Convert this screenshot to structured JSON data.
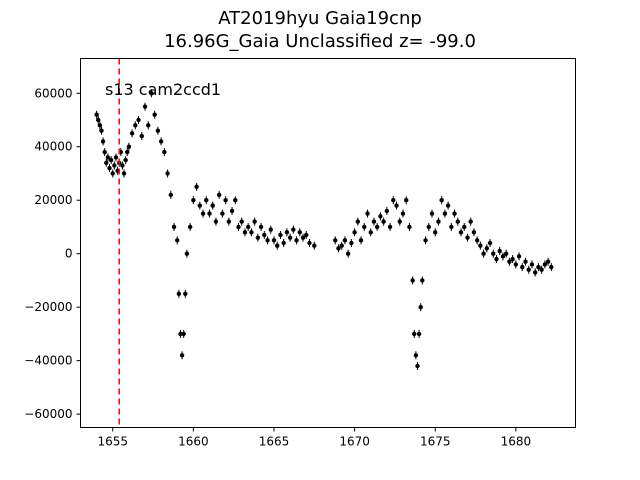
{
  "chart_data": {
    "type": "scatter",
    "title_line1": "AT2019hyu  Gaia19cnp",
    "title_line2": "16.96G_Gaia Unclassified z= -99.0",
    "annotation": "s13 cam2ccd1",
    "xlabel": "",
    "ylabel": "",
    "xlim": [
      1653.0,
      1683.7
    ],
    "ylim": [
      -65000,
      73000
    ],
    "xticks": [
      1655,
      1660,
      1665,
      1670,
      1675,
      1680
    ],
    "yticks": [
      -60000,
      -40000,
      -20000,
      0,
      20000,
      40000,
      60000
    ],
    "xtick_labels": [
      "1655",
      "1660",
      "1665",
      "1670",
      "1675",
      "1680"
    ],
    "ytick_labels": [
      "−60000",
      "−40000",
      "−20000",
      "0",
      "20000",
      "40000",
      "60000"
    ],
    "grid": false,
    "marker_color": "#000000",
    "vline": {
      "x": 1655.4,
      "color": "#e41a1c",
      "style": "dashed"
    },
    "series": [
      {
        "values": [
          [
            1654.0,
            52000
          ],
          [
            1654.1,
            50000
          ],
          [
            1654.2,
            48000
          ],
          [
            1654.3,
            46000
          ],
          [
            1654.4,
            42000
          ],
          [
            1654.5,
            38000
          ],
          [
            1654.6,
            34000
          ],
          [
            1654.7,
            36000
          ],
          [
            1654.8,
            32000
          ],
          [
            1654.9,
            35000
          ],
          [
            1655.0,
            30000
          ],
          [
            1655.1,
            33000
          ],
          [
            1655.2,
            36000
          ],
          [
            1655.3,
            31000
          ],
          [
            1655.4,
            34000
          ],
          [
            1655.5,
            38000
          ],
          [
            1655.6,
            33000
          ],
          [
            1655.7,
            30000
          ],
          [
            1655.8,
            35000
          ],
          [
            1655.9,
            38000
          ],
          [
            1656.0,
            40000
          ],
          [
            1656.2,
            45000
          ],
          [
            1656.4,
            48000
          ],
          [
            1656.6,
            50000
          ],
          [
            1656.8,
            44000
          ],
          [
            1657.0,
            55000
          ],
          [
            1657.2,
            48000
          ],
          [
            1657.4,
            60000
          ],
          [
            1657.6,
            52000
          ],
          [
            1657.8,
            46000
          ],
          [
            1658.0,
            42000
          ],
          [
            1658.2,
            38000
          ],
          [
            1658.4,
            30000
          ],
          [
            1658.6,
            22000
          ],
          [
            1658.8,
            10000
          ],
          [
            1659.0,
            5000
          ],
          [
            1659.1,
            -15000
          ],
          [
            1659.2,
            -30000
          ],
          [
            1659.3,
            -38000
          ],
          [
            1659.4,
            -30000
          ],
          [
            1659.5,
            -15000
          ],
          [
            1659.6,
            0
          ],
          [
            1659.8,
            10000
          ],
          [
            1660.0,
            20000
          ],
          [
            1660.2,
            25000
          ],
          [
            1660.4,
            18000
          ],
          [
            1660.6,
            15000
          ],
          [
            1660.8,
            20000
          ],
          [
            1661.0,
            15000
          ],
          [
            1661.2,
            18000
          ],
          [
            1661.4,
            12000
          ],
          [
            1661.6,
            22000
          ],
          [
            1661.8,
            15000
          ],
          [
            1662.0,
            20000
          ],
          [
            1662.2,
            12000
          ],
          [
            1662.4,
            16000
          ],
          [
            1662.6,
            20000
          ],
          [
            1662.8,
            10000
          ],
          [
            1663.0,
            12000
          ],
          [
            1663.2,
            8000
          ],
          [
            1663.4,
            10000
          ],
          [
            1663.6,
            8000
          ],
          [
            1663.8,
            12000
          ],
          [
            1664.0,
            6000
          ],
          [
            1664.2,
            10000
          ],
          [
            1664.4,
            7000
          ],
          [
            1664.6,
            5000
          ],
          [
            1664.8,
            9000
          ],
          [
            1665.0,
            5000
          ],
          [
            1665.2,
            3000
          ],
          [
            1665.4,
            7000
          ],
          [
            1665.6,
            4000
          ],
          [
            1665.8,
            8000
          ],
          [
            1666.0,
            6000
          ],
          [
            1666.2,
            9000
          ],
          [
            1666.4,
            5000
          ],
          [
            1666.6,
            8000
          ],
          [
            1666.8,
            6000
          ],
          [
            1667.0,
            7000
          ],
          [
            1667.2,
            4000
          ],
          [
            1667.5,
            3000
          ],
          [
            1668.8,
            5000
          ],
          [
            1669.0,
            2000
          ],
          [
            1669.2,
            3000
          ],
          [
            1669.4,
            5000
          ],
          [
            1669.6,
            0
          ],
          [
            1669.8,
            4000
          ],
          [
            1670.0,
            8000
          ],
          [
            1670.2,
            12000
          ],
          [
            1670.4,
            5000
          ],
          [
            1670.6,
            10000
          ],
          [
            1670.8,
            15000
          ],
          [
            1671.0,
            8000
          ],
          [
            1671.2,
            12000
          ],
          [
            1671.4,
            10000
          ],
          [
            1671.6,
            14000
          ],
          [
            1671.8,
            12000
          ],
          [
            1672.0,
            16000
          ],
          [
            1672.2,
            10000
          ],
          [
            1672.4,
            20000
          ],
          [
            1672.6,
            18000
          ],
          [
            1672.8,
            12000
          ],
          [
            1673.0,
            15000
          ],
          [
            1673.2,
            20000
          ],
          [
            1673.4,
            10000
          ],
          [
            1673.6,
            -10000
          ],
          [
            1673.7,
            -30000
          ],
          [
            1673.8,
            -38000
          ],
          [
            1673.9,
            -42000
          ],
          [
            1674.0,
            -30000
          ],
          [
            1674.1,
            -20000
          ],
          [
            1674.2,
            -10000
          ],
          [
            1674.4,
            5000
          ],
          [
            1674.6,
            10000
          ],
          [
            1674.8,
            15000
          ],
          [
            1675.0,
            8000
          ],
          [
            1675.2,
            12000
          ],
          [
            1675.4,
            20000
          ],
          [
            1675.6,
            15000
          ],
          [
            1675.8,
            18000
          ],
          [
            1676.0,
            10000
          ],
          [
            1676.2,
            15000
          ],
          [
            1676.4,
            12000
          ],
          [
            1676.6,
            8000
          ],
          [
            1676.8,
            10000
          ],
          [
            1677.0,
            6000
          ],
          [
            1677.2,
            12000
          ],
          [
            1677.4,
            8000
          ],
          [
            1677.6,
            5000
          ],
          [
            1677.8,
            3000
          ],
          [
            1678.0,
            0
          ],
          [
            1678.2,
            2000
          ],
          [
            1678.4,
            4000
          ],
          [
            1678.6,
            0
          ],
          [
            1678.8,
            -2000
          ],
          [
            1679.0,
            1000
          ],
          [
            1679.2,
            -1000
          ],
          [
            1679.4,
            0
          ],
          [
            1679.6,
            -3000
          ],
          [
            1679.8,
            -2000
          ],
          [
            1680.0,
            -4000
          ],
          [
            1680.2,
            -1000
          ],
          [
            1680.4,
            -5000
          ],
          [
            1680.6,
            -3000
          ],
          [
            1680.8,
            -6000
          ],
          [
            1681.0,
            -4000
          ],
          [
            1681.2,
            -7000
          ],
          [
            1681.4,
            -5000
          ],
          [
            1681.6,
            -6000
          ],
          [
            1681.8,
            -4000
          ],
          [
            1682.0,
            -3000
          ],
          [
            1682.2,
            -5000
          ]
        ]
      }
    ]
  }
}
